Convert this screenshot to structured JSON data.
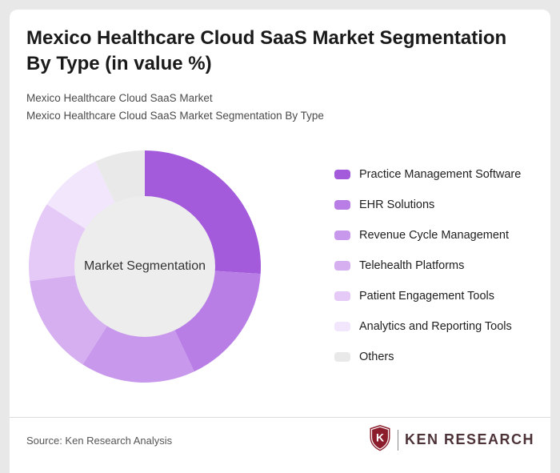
{
  "title": "Mexico Healthcare Cloud SaaS Market Segmentation By Type (in value %)",
  "subtitle_line1": "Mexico Healthcare Cloud SaaS Market",
  "subtitle_line2": "Mexico Healthcare Cloud SaaS Market Segmentation By Type",
  "chart_data": {
    "type": "pie",
    "donut": true,
    "center_label": "Market Segmentation",
    "categories": [
      "Practice Management Software",
      "EHR Solutions",
      "Revenue Cycle Management",
      "Telehealth Platforms",
      "Patient Engagement Tools",
      "Analytics and Reporting Tools",
      "Others"
    ],
    "values": [
      26,
      17,
      16,
      14,
      11,
      9,
      7
    ],
    "colors": [
      "#a35bdb",
      "#b97ee6",
      "#c898ec",
      "#d6aff1",
      "#e5c9f7",
      "#f1e6fb",
      "#e9e9e9"
    ],
    "center_color": "#ededed",
    "legend_position": "right",
    "value_unit": "% of market value",
    "title": "Mexico Healthcare Cloud SaaS Market Segmentation By Type (in value %)"
  },
  "footer": {
    "source": "Source: Ken Research Analysis",
    "brand": "KEN RESEARCH",
    "brand_color": "#8b1d2c"
  }
}
